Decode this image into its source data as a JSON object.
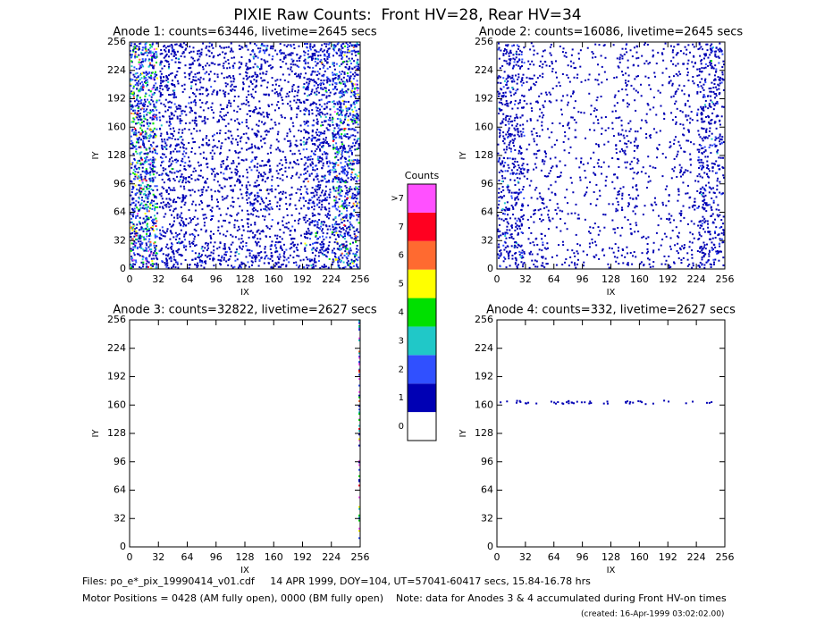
{
  "title": "PIXIE Raw Counts:  Front HV=28, Rear HV=34",
  "chart_data": [
    {
      "type": "heatmap",
      "title": "Anode 1: counts=63446, livetime=2645 secs",
      "xlabel": "IX",
      "ylabel": "IY",
      "xlim": [
        0,
        256
      ],
      "ylim": [
        0,
        256
      ],
      "xticks": [
        0,
        32,
        64,
        96,
        128,
        160,
        192,
        224,
        256
      ],
      "yticks": [
        0,
        32,
        64,
        96,
        128,
        160,
        192,
        224,
        256
      ],
      "xbins": [
        0,
        32,
        64,
        96,
        128,
        160,
        192,
        224,
        256
      ],
      "ybins": [
        0,
        32,
        64,
        96,
        128,
        160,
        192,
        224,
        256
      ],
      "values": [
        [
          2.5,
          0.8,
          0.7,
          0.6,
          0.7,
          0.7,
          1.0,
          2.0
        ],
        [
          2.5,
          0.6,
          0.3,
          0.3,
          0.4,
          0.3,
          0.9,
          2.0
        ],
        [
          2.5,
          0.6,
          0.3,
          0.3,
          0.9,
          0.3,
          0.9,
          2.0
        ],
        [
          2.5,
          0.7,
          0.4,
          0.5,
          0.5,
          0.3,
          1.0,
          2.0
        ],
        [
          2.5,
          0.7,
          0.3,
          0.3,
          0.4,
          0.3,
          1.0,
          2.0
        ],
        [
          2.5,
          0.6,
          0.4,
          0.3,
          0.4,
          0.3,
          0.9,
          2.0
        ],
        [
          2.5,
          0.7,
          0.5,
          0.4,
          0.5,
          0.4,
          1.1,
          2.0
        ],
        [
          2.5,
          0.8,
          0.5,
          0.4,
          0.8,
          0.5,
          1.2,
          2.0
        ]
      ]
    },
    {
      "type": "heatmap",
      "title": "Anode 2: counts=16086, livetime=2645 secs",
      "xlabel": "IX",
      "ylabel": "IY",
      "xlim": [
        0,
        256
      ],
      "ylim": [
        0,
        256
      ],
      "xticks": [
        0,
        32,
        64,
        96,
        128,
        160,
        192,
        224,
        256
      ],
      "yticks": [
        0,
        32,
        64,
        96,
        128,
        160,
        192,
        224,
        256
      ],
      "xbins": [
        0,
        32,
        64,
        96,
        128,
        160,
        192,
        224,
        256
      ],
      "ybins": [
        0,
        32,
        64,
        96,
        128,
        160,
        192,
        224,
        256
      ],
      "values": [
        [
          0.8,
          0.3,
          0.2,
          0.15,
          0.2,
          0.2,
          0.3,
          0.7
        ],
        [
          0.7,
          0.2,
          0.1,
          0.1,
          0.15,
          0.1,
          0.2,
          0.6
        ],
        [
          0.7,
          0.2,
          0.1,
          0.1,
          0.35,
          0.1,
          0.2,
          0.6
        ],
        [
          0.7,
          0.2,
          0.15,
          0.15,
          0.2,
          0.1,
          0.2,
          0.6
        ],
        [
          0.7,
          0.2,
          0.1,
          0.1,
          0.35,
          0.1,
          0.2,
          0.6
        ],
        [
          0.6,
          0.2,
          0.15,
          0.1,
          0.15,
          0.1,
          0.2,
          0.6
        ],
        [
          0.7,
          0.2,
          0.15,
          0.1,
          0.2,
          0.1,
          0.25,
          0.7
        ],
        [
          0.7,
          0.25,
          0.15,
          0.1,
          0.25,
          0.15,
          0.3,
          0.8
        ]
      ]
    },
    {
      "type": "heatmap",
      "title": "Anode 3: counts=32822, livetime=2627 secs",
      "xlabel": "IX",
      "ylabel": "IY",
      "xlim": [
        0,
        256
      ],
      "ylim": [
        0,
        256
      ],
      "xticks": [
        0,
        32,
        64,
        96,
        128,
        160,
        192,
        224,
        256
      ],
      "yticks": [
        0,
        32,
        64,
        96,
        128,
        160,
        192,
        224,
        256
      ],
      "xbins": [
        0,
        254,
        256
      ],
      "ybins": [
        0,
        256
      ],
      "values": [
        [
          0,
          8
        ]
      ]
    },
    {
      "type": "heatmap",
      "title": "Anode 4: counts=332, livetime=2627 secs",
      "xlabel": "IX",
      "ylabel": "IY",
      "xlim": [
        0,
        256
      ],
      "ylim": [
        0,
        256
      ],
      "xticks": [
        0,
        32,
        64,
        96,
        128,
        160,
        192,
        224,
        256
      ],
      "yticks": [
        0,
        32,
        64,
        96,
        128,
        160,
        192,
        224,
        256
      ],
      "xbins": [
        0,
        248,
        256
      ],
      "ybins": [
        0,
        160,
        166,
        256
      ],
      "values": [
        [
          0,
          0
        ],
        [
          0.3,
          0
        ],
        [
          0,
          0
        ]
      ]
    }
  ],
  "colorbar": {
    "title": "Counts",
    "ticks": [
      0,
      1,
      2,
      3,
      4,
      5,
      6,
      7,
      {
        "value": 8,
        "label": ">7"
      }
    ],
    "colors": [
      "#ffffff",
      "#0000b4",
      "#3050ff",
      "#20c8c8",
      "#00e000",
      "#ffff00",
      "#ff6a30",
      "#ff0020",
      "#ff50ff"
    ]
  },
  "footer": [
    "Files: po_e*_pix_19990414_v01.cdf     14 APR 1999, DOY=104, UT=57041-60417 secs, 15.84-16.78 hrs",
    "Motor Positions = 0428 (AM fully open), 0000 (BM fully open)    Note: data for Anodes 3 & 4 accumulated during Front HV-on times",
    "(created: 16-Apr-1999 03:02:02.00)"
  ]
}
